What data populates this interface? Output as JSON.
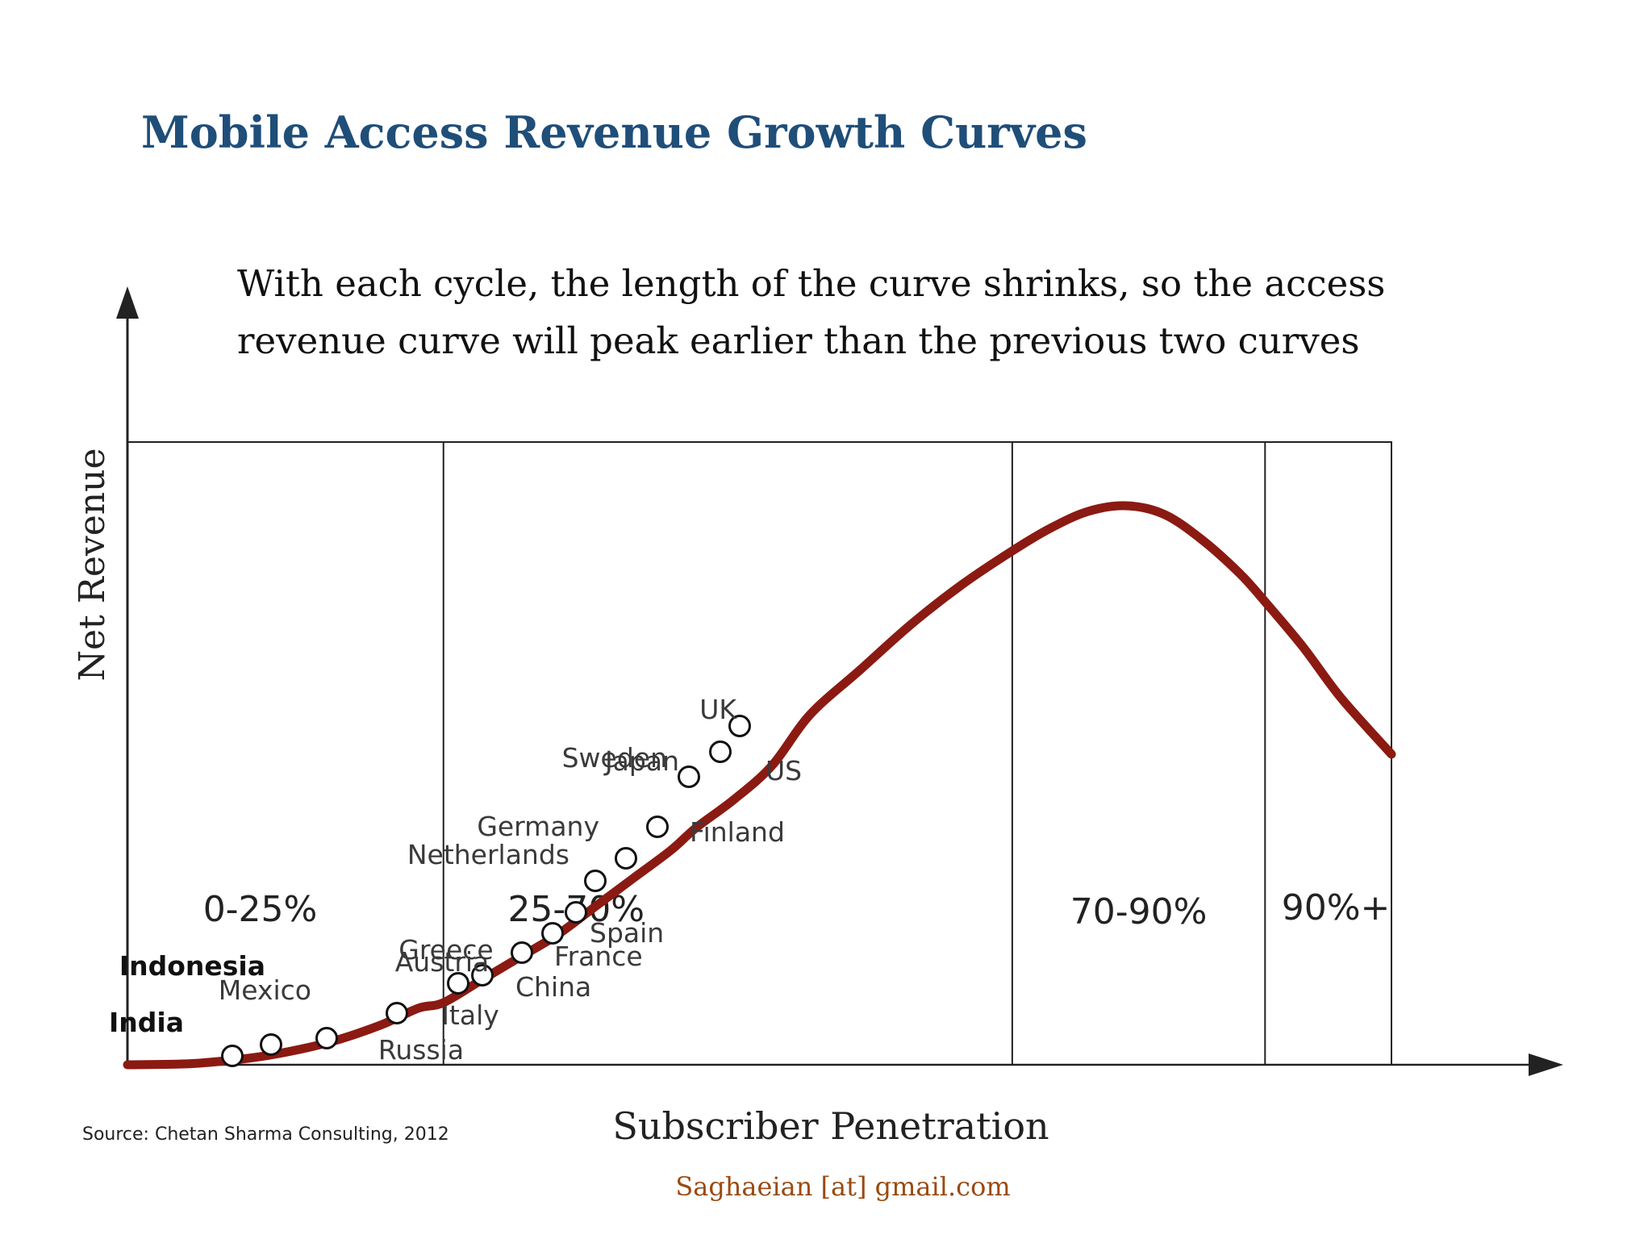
{
  "colors": {
    "title": "#1f4e79",
    "curve": "#8b1a12",
    "axis": "#222222",
    "text": "#111111",
    "label_text": "#3a3a3a",
    "footer": "#9a4a10"
  },
  "slide": {
    "title": "Mobile Access Revenue Growth Curves",
    "subtitle_lines": [
      "With each cycle, the length of the curve shrinks, so the access",
      "revenue curve will peak earlier than the previous two curves"
    ],
    "source": "Source:  Chetan Sharma Consulting, 2012",
    "footer": "Saghaeian [at] gmail.com"
  },
  "chart_data": {
    "type": "line",
    "title": "",
    "xlabel": "Subscriber Penetration",
    "ylabel": "Net Revenue",
    "x_axis_ticks": "none",
    "y_axis_ticks": "none",
    "grid": false,
    "legend": "none",
    "segments": [
      {
        "label": "0-25%",
        "from": 0,
        "to": 25
      },
      {
        "label": "25-70%",
        "from": 25,
        "to": 70
      },
      {
        "label": "70-90%",
        "from": 70,
        "to": 90
      },
      {
        "label": "90%+",
        "from": 90,
        "to": 100
      }
    ],
    "series": [
      {
        "points": [
          [
            0,
            0
          ],
          [
            5,
            0.2
          ],
          [
            9,
            1
          ],
          [
            12,
            2
          ],
          [
            16,
            4
          ],
          [
            20,
            7
          ],
          [
            23,
            10
          ],
          [
            25,
            11
          ],
          [
            28,
            15
          ],
          [
            31,
            19
          ],
          [
            34,
            23
          ],
          [
            37,
            28
          ],
          [
            40,
            33
          ],
          [
            43,
            38
          ],
          [
            45,
            42
          ],
          [
            48,
            47
          ],
          [
            51,
            53
          ],
          [
            54,
            62
          ],
          [
            58,
            70
          ],
          [
            62,
            78
          ],
          [
            66,
            85
          ],
          [
            70,
            91
          ],
          [
            73,
            95
          ],
          [
            76,
            98
          ],
          [
            79,
            99
          ],
          [
            82,
            97.5
          ],
          [
            85,
            93
          ],
          [
            88,
            87
          ],
          [
            90,
            82
          ],
          [
            93,
            74
          ],
          [
            96,
            65
          ],
          [
            100,
            55
          ]
        ]
      }
    ],
    "country_points": [
      {
        "country": "India",
        "x": 7,
        "y": 1
      },
      {
        "country": "Mexico",
        "x": 9.5,
        "y": 3
      },
      {
        "country": "Indonesia",
        "x": 13.5,
        "y": 4
      },
      {
        "country": "Russia",
        "x": 18,
        "y": 8
      },
      {
        "country": "Austria",
        "x": 22,
        "y": 13
      },
      {
        "country": "Greece",
        "x": 23.5,
        "y": 14.5
      },
      {
        "country": "Italy",
        "x": 23.6,
        "y": 14.6
      },
      {
        "country": "China",
        "x": 26.8,
        "y": 18
      },
      {
        "country": "France",
        "x": 28.8,
        "y": 21
      },
      {
        "country": "Spain",
        "x": 30.5,
        "y": 24
      },
      {
        "country": "Netherlands",
        "x": 31.8,
        "y": 29
      },
      {
        "country": "Germany",
        "x": 33.8,
        "y": 32
      },
      {
        "country": "Finland",
        "x": 35.5,
        "y": 38
      },
      {
        "country": "Sweden",
        "x": 38,
        "y": 46
      },
      {
        "country": "US",
        "x": 40,
        "y": 50
      },
      {
        "country": "Japan",
        "x": 40,
        "y": 50.5
      },
      {
        "country": "UK",
        "x": 41.5,
        "y": 54
      }
    ]
  }
}
